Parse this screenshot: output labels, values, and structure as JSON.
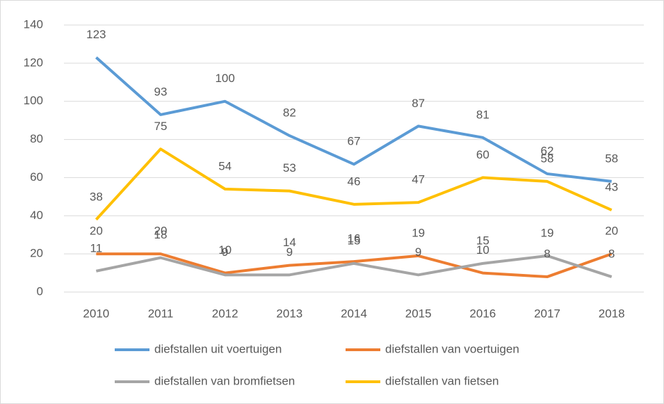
{
  "chart_data": {
    "type": "line",
    "categories": [
      "2010",
      "2011",
      "2012",
      "2013",
      "2014",
      "2015",
      "2016",
      "2017",
      "2018"
    ],
    "series": [
      {
        "name": "diefstallen uit voertuigen",
        "color": "#5b9bd5",
        "values": [
          123,
          93,
          100,
          82,
          67,
          87,
          81,
          62,
          58
        ]
      },
      {
        "name": "diefstallen van voertuigen",
        "color": "#ed7d31",
        "values": [
          20,
          20,
          10,
          14,
          16,
          19,
          10,
          8,
          20
        ]
      },
      {
        "name": "diefstallen van bromfietsen",
        "color": "#a5a5a5",
        "values": [
          11,
          18,
          9,
          9,
          15,
          9,
          15,
          19,
          8
        ]
      },
      {
        "name": "diefstallen van fietsen",
        "color": "#ffc000",
        "values": [
          38,
          75,
          54,
          53,
          46,
          47,
          60,
          58,
          43
        ]
      }
    ],
    "ylim": [
      0,
      140
    ],
    "yticks": [
      0,
      20,
      40,
      60,
      80,
      100,
      120,
      140
    ],
    "grid": true,
    "legend": "bottom",
    "data_labels": true
  }
}
